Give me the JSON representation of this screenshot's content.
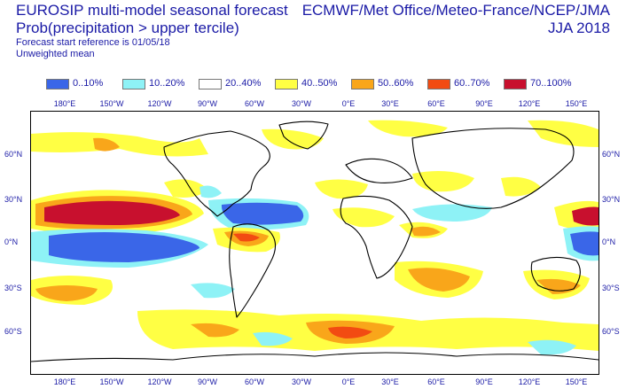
{
  "header": {
    "title_line1": "EUROSIP multi-model seasonal forecast",
    "title_line2": "Prob(precipitation > upper tercile)",
    "forecast_start": "Forecast start reference is 01/05/18",
    "weighting": "Unweighted mean",
    "centres": "ECMWF/Met Office/Meteo-France/NCEP/JMA",
    "season": "JJA 2018"
  },
  "legend": [
    {
      "label": "0..10%",
      "color": "#3a66e8"
    },
    {
      "label": "10..20%",
      "color": "#8ef2f6"
    },
    {
      "label": "20..40%",
      "color": "#ffffff"
    },
    {
      "label": "40..50%",
      "color": "#ffff44"
    },
    {
      "label": "50..60%",
      "color": "#f9a61a"
    },
    {
      "label": "60..70%",
      "color": "#f24b12"
    },
    {
      "label": "70..100%",
      "color": "#c8102e"
    }
  ],
  "axes": {
    "lon_top": [
      "180°E",
      "150°W",
      "120°W",
      "90°W",
      "60°W",
      "30°W",
      "0°E",
      "30°E",
      "60°E",
      "90°E",
      "120°E",
      "150°E"
    ],
    "lon_bottom": [
      "180°E",
      "150°W",
      "120°W",
      "90°W",
      "60°W",
      "30°W",
      "0°E",
      "30°E",
      "60°E",
      "90°E",
      "120°E",
      "150°E"
    ],
    "lat_left": [
      "60°N",
      "30°N",
      "0°N",
      "30°S",
      "60°S"
    ],
    "lat_right": [
      "60°N",
      "30°N",
      "0°N",
      "30°S",
      "60°S"
    ]
  }
}
